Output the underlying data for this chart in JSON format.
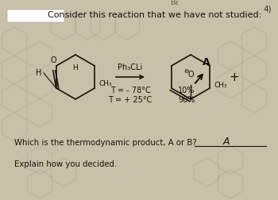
{
  "bg_color": "#c9c0aa",
  "title_text": "Consider this reaction that we have not studied:",
  "title_fontsize": 8.0,
  "reagent_text": "Ph₃CLi",
  "temp_line1": "T = - 78°C",
  "temp_line2": "T = + 25°C",
  "pct_line1": "10%",
  "pct_line2": "90%",
  "bottom_q": "Which is the thermodynamic product, A or B?",
  "bottom_ans": "A",
  "bottom_explain": "Explain how you decided.",
  "watermark_text": "Bε",
  "corner_text": "4)",
  "fontsize_small": 7.0,
  "hex_bg_color": "#8a7d6a",
  "text_color": "#1a1209",
  "mol_color": "#1a1209"
}
